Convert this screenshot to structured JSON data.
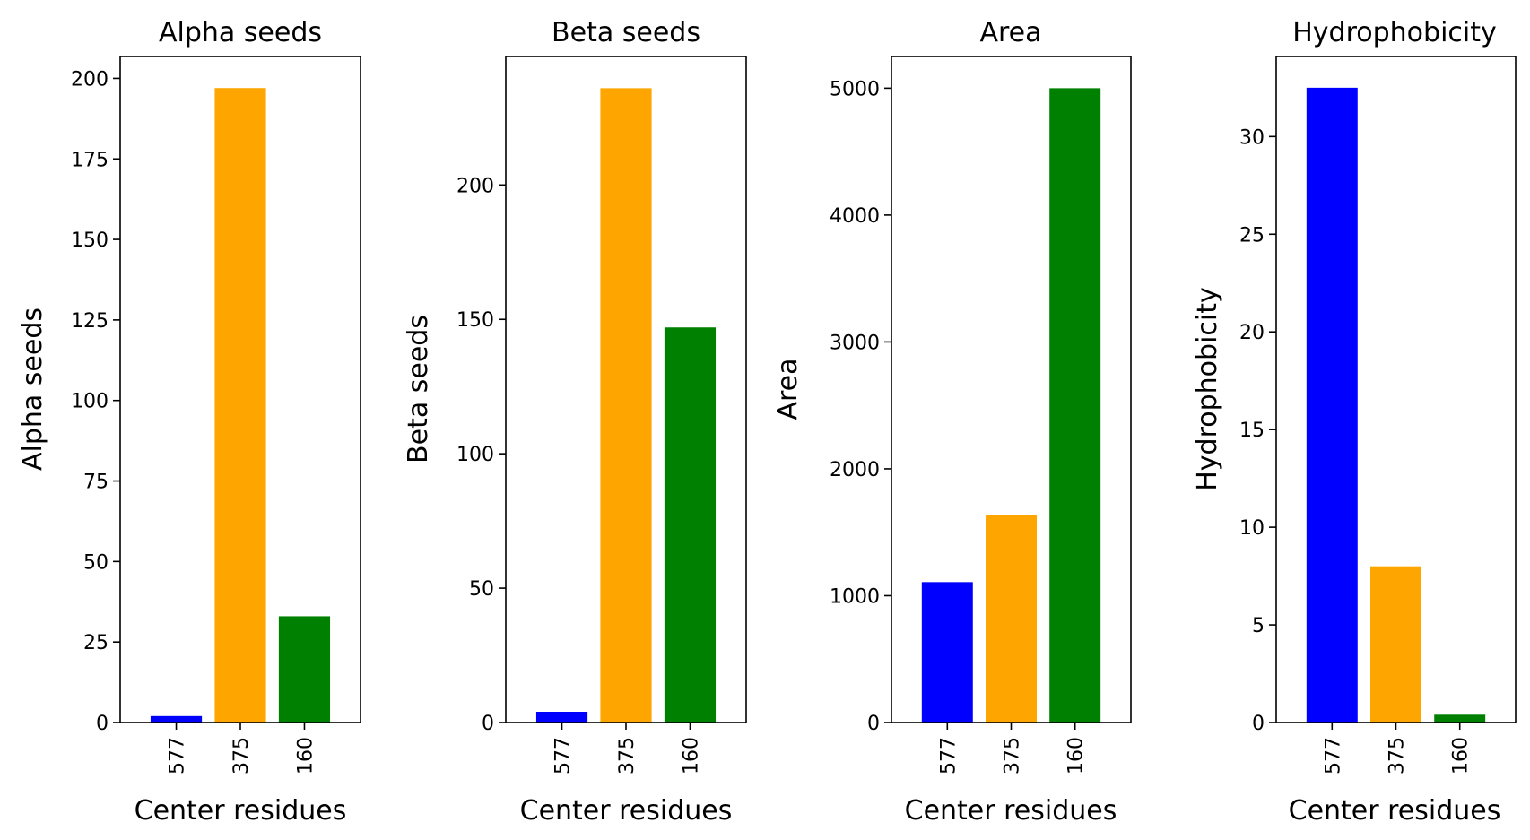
{
  "figure": {
    "background": "#ffffff"
  },
  "chart_data": [
    {
      "type": "bar",
      "title": "Alpha seeds",
      "xlabel": "Center residues",
      "ylabel": "Alpha seeds",
      "categories": [
        "577",
        "375",
        "160"
      ],
      "values": [
        2,
        197,
        33
      ],
      "colors": [
        "#0000ff",
        "#ffa500",
        "#008000"
      ],
      "ylim": [
        0,
        206.8
      ],
      "yticks": [
        0,
        25,
        50,
        75,
        100,
        125,
        150,
        175,
        200
      ],
      "xtick_rotation": 90,
      "grid": false,
      "legend": false
    },
    {
      "type": "bar",
      "title": "Beta seeds",
      "xlabel": "Center residues",
      "ylabel": "Beta seeds",
      "categories": [
        "577",
        "375",
        "160"
      ],
      "values": [
        4,
        236,
        147
      ],
      "colors": [
        "#0000ff",
        "#ffa500",
        "#008000"
      ],
      "ylim": [
        0,
        247.8
      ],
      "yticks": [
        0,
        50,
        100,
        150,
        200
      ],
      "xtick_rotation": 90,
      "grid": false,
      "legend": false
    },
    {
      "type": "bar",
      "title": "Area",
      "xlabel": "Center residues",
      "ylabel": "Area",
      "categories": [
        "577",
        "375",
        "160"
      ],
      "values": [
        1107,
        1637,
        5000
      ],
      "colors": [
        "#0000ff",
        "#ffa500",
        "#008000"
      ],
      "ylim": [
        0,
        5250
      ],
      "yticks": [
        0,
        1000,
        2000,
        3000,
        4000,
        5000
      ],
      "xtick_rotation": 90,
      "grid": false,
      "legend": false
    },
    {
      "type": "bar",
      "title": "Hydrophobicity",
      "xlabel": "Center residues",
      "ylabel": "Hydrophobicity",
      "categories": [
        "577",
        "375",
        "160"
      ],
      "values": [
        32.5,
        8.0,
        0.4
      ],
      "colors": [
        "#0000ff",
        "#ffa500",
        "#008000"
      ],
      "ylim": [
        0,
        34.1
      ],
      "yticks": [
        0,
        5,
        10,
        15,
        20,
        25,
        30
      ],
      "xtick_rotation": 90,
      "grid": false,
      "legend": false
    }
  ]
}
